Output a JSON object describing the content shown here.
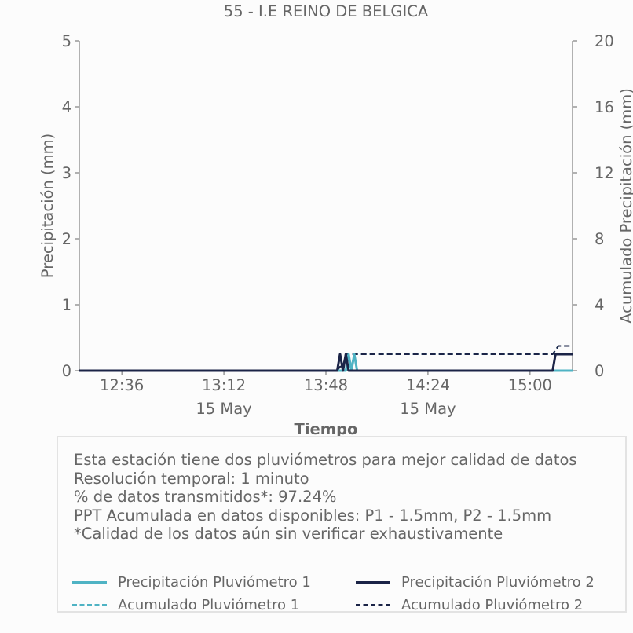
{
  "chart_data": {
    "type": "line",
    "title": "55 - I.E REINO DE BELGICA",
    "xlabel": "Tiempo",
    "ylabel_left": "Precipitación (mm)",
    "ylabel_right": "Acumulado Precipitación (mm)",
    "x_range": [
      "12:21",
      "15:15"
    ],
    "x_ticks": [
      {
        "time": "12:36",
        "label": "12:36",
        "sublabel": ""
      },
      {
        "time": "13:12",
        "label": "13:12",
        "sublabel": "15 May"
      },
      {
        "time": "13:48",
        "label": "13:48",
        "sublabel": ""
      },
      {
        "time": "14:24",
        "label": "14:24",
        "sublabel": "15 May"
      },
      {
        "time": "15:00",
        "label": "15:00",
        "sublabel": ""
      }
    ],
    "ylim_left": [
      0,
      5
    ],
    "yticks_left": [
      0,
      1,
      2,
      3,
      4,
      5
    ],
    "ylim_right": [
      0,
      20
    ],
    "yticks_right": [
      0,
      4,
      8,
      12,
      16,
      20
    ],
    "grid": false,
    "series": [
      {
        "name": "Precipitación Pluviómetro 1",
        "axis": "left",
        "style": "solid",
        "color": "#4fb3c4",
        "x": [
          "12:21",
          "13:55",
          "13:56",
          "13:57",
          "13:58",
          "13:59",
          "15:15"
        ],
        "y": [
          0,
          0,
          0.25,
          0,
          0.25,
          0,
          0
        ]
      },
      {
        "name": "Precipitación Pluviómetro 2",
        "axis": "left",
        "style": "solid",
        "color": "#1b2447",
        "x": [
          "12:21",
          "13:52",
          "13:53",
          "13:54",
          "13:55",
          "13:56",
          "15:08",
          "15:09",
          "15:15"
        ],
        "y": [
          0,
          0,
          0.25,
          0,
          0.25,
          0,
          0,
          0.25,
          0.25
        ]
      },
      {
        "name": "Acumulado Pluviómetro 1",
        "axis": "right",
        "style": "dashed",
        "color": "#4fb3c4",
        "x": [
          "12:21",
          "13:55",
          "13:56",
          "13:57",
          "13:58",
          "15:08",
          "15:09",
          "15:10",
          "15:15"
        ],
        "y": [
          0,
          0,
          0.25,
          0.25,
          1.0,
          1.0,
          1.25,
          1.5,
          1.5
        ]
      },
      {
        "name": "Acumulado Pluviómetro 2",
        "axis": "right",
        "style": "dashed",
        "color": "#1b2447",
        "x": [
          "12:21",
          "13:52",
          "13:53",
          "13:54",
          "13:55",
          "15:08",
          "15:09",
          "15:10",
          "15:15"
        ],
        "y": [
          0,
          0,
          0.25,
          0.25,
          1.0,
          1.0,
          1.25,
          1.5,
          1.5
        ]
      }
    ]
  },
  "info": {
    "lines": [
      "Esta estación tiene dos pluviómetros para mejor calidad de datos",
      "Resolución temporal: 1 minuto",
      "% de datos transmitidos*: 97.24%",
      "PPT Acumulada en datos disponibles: P1 - 1.5mm, P2 - 1.5mm",
      "*Calidad de los datos aún sin verificar exhaustivamente"
    ]
  },
  "legend": {
    "items": [
      {
        "label": "Precipitación Pluviómetro 1",
        "color": "#4fb3c4",
        "style": "solid"
      },
      {
        "label": "Precipitación Pluviómetro 2",
        "color": "#1b2447",
        "style": "solid"
      },
      {
        "label": "Acumulado Pluviómetro 1",
        "color": "#4fb3c4",
        "style": "dashed"
      },
      {
        "label": "Acumulado Pluviómetro 2",
        "color": "#1b2447",
        "style": "dashed"
      }
    ]
  }
}
